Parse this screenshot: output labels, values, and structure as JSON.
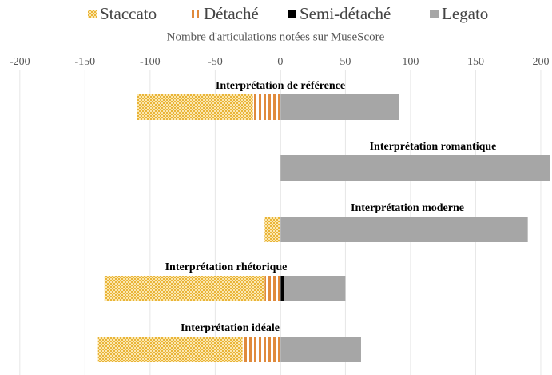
{
  "chart_data": {
    "type": "bar",
    "orientation": "horizontal",
    "stacked": true,
    "subtitle": "Nombre d'articulations notées sur MuseScore",
    "categories": [
      "Interprétation de référence",
      "Interprétation romantique",
      "Interprétation moderne",
      "Interprétation rhétorique",
      "Interprétation idéale"
    ],
    "series": [
      {
        "name": "Staccato",
        "color": "#f2c14e",
        "pattern": "checker",
        "values": [
          -89,
          0,
          -12,
          -123,
          -111
        ]
      },
      {
        "name": "Détaché",
        "color": "#e08a3c",
        "pattern": "stripes",
        "values": [
          -21,
          0,
          0,
          -12,
          -29
        ]
      },
      {
        "name": "Semi-détaché",
        "color": "#000000",
        "values": [
          0,
          0,
          0,
          3,
          0
        ]
      },
      {
        "name": "Legato",
        "color": "#a6a6a6",
        "values": [
          91,
          207,
          190,
          47,
          62
        ]
      }
    ],
    "xlim": [
      -214,
      208
    ],
    "xticks": [
      -200,
      -150,
      -100,
      -50,
      0,
      50,
      100,
      150,
      200
    ],
    "grid": true,
    "legend": "top"
  }
}
